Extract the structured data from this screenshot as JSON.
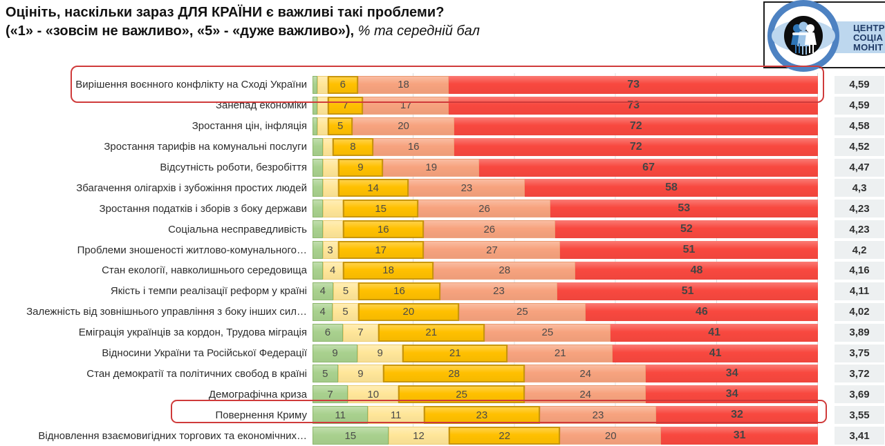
{
  "title": {
    "line1": "Оцініть, наскільки зараз ДЛЯ КРАЇНИ є важливі такі проблеми?",
    "line2_bold": "(«1» - «зовсім не важливо», «5» - «дуже важливо»), ",
    "line2_italic": "% та середній бал"
  },
  "logo": {
    "lines": [
      "ЦЕНТР",
      "СОЦІА",
      "МОНІТ"
    ]
  },
  "chart_data": {
    "type": "bar",
    "stacked": true,
    "orientation": "horizontal",
    "title": "Оцініть, наскільки зараз ДЛЯ КРАЇНИ є важливі такі проблеми?",
    "subtitle": "(«1» - «зовсім не важливо», «5» - «дуже важливо»), % та середній бал",
    "value_unit": "%",
    "scale": {
      "min": 1,
      "max": 5,
      "min_label": "зовсім не важливо",
      "max_label": "дуже важливо"
    },
    "series_names": [
      "1",
      "2",
      "3",
      "4",
      "5"
    ],
    "segment_colors": [
      "#a9d18e",
      "#ffe699",
      "#ffc000",
      "#f7a37e",
      "#f8483f"
    ],
    "grid": true,
    "score_column_title": "середній бал",
    "rows": [
      {
        "label": "Вирішення воєнного конфлікту на Сході України",
        "values": [
          1,
          2,
          6,
          18,
          73
        ],
        "labels": [
          "",
          "",
          "6",
          "18",
          "73"
        ],
        "score": "4,59",
        "highlighted": true
      },
      {
        "label": "Занепад економіки",
        "values": [
          1,
          2,
          7,
          17,
          73
        ],
        "labels": [
          "",
          "",
          "7",
          "17",
          "73"
        ],
        "score": "4,59",
        "highlighted": false
      },
      {
        "label": "Зростання цін, інфляція",
        "values": [
          1,
          2,
          5,
          20,
          72
        ],
        "labels": [
          "",
          "",
          "5",
          "20",
          "72"
        ],
        "score": "4,58",
        "highlighted": false
      },
      {
        "label": "Зростання тарифів на комунальні послуги",
        "values": [
          2,
          2,
          8,
          16,
          72
        ],
        "labels": [
          "",
          "",
          "8",
          "16",
          "72"
        ],
        "score": "4,52",
        "highlighted": false
      },
      {
        "label": "Відсутність роботи, безробіття",
        "values": [
          2,
          3,
          9,
          19,
          67
        ],
        "labels": [
          "",
          "",
          "9",
          "19",
          "67"
        ],
        "score": "4,47",
        "highlighted": false
      },
      {
        "label": "Збагачення олігархів і зубожіння простих людей",
        "values": [
          2,
          3,
          14,
          23,
          58
        ],
        "labels": [
          "",
          "",
          "14",
          "23",
          "58"
        ],
        "score": "4,3",
        "highlighted": false
      },
      {
        "label": "Зростання податків і зборів з боку держави",
        "values": [
          2,
          4,
          15,
          26,
          53
        ],
        "labels": [
          "",
          "",
          "15",
          "26",
          "53"
        ],
        "score": "4,23",
        "highlighted": false
      },
      {
        "label": "Соціальна несправедливість",
        "values": [
          2,
          4,
          16,
          26,
          52
        ],
        "labels": [
          "",
          "",
          "16",
          "26",
          "52"
        ],
        "score": "4,23",
        "highlighted": false
      },
      {
        "label": "Проблеми зношеності житлово-комунального…",
        "values": [
          2,
          3,
          17,
          27,
          51
        ],
        "labels": [
          "",
          "3",
          "17",
          "27",
          "51"
        ],
        "score": "4,2",
        "highlighted": false
      },
      {
        "label": "Стан екології, навколишнього середовища",
        "values": [
          2,
          4,
          18,
          28,
          48
        ],
        "labels": [
          "",
          "4",
          "18",
          "28",
          "48"
        ],
        "score": "4,16",
        "highlighted": false
      },
      {
        "label": "Якість і темпи реалізації реформ у країні",
        "values": [
          4,
          5,
          16,
          23,
          51
        ],
        "labels": [
          "4",
          "5",
          "16",
          "23",
          "51"
        ],
        "score": "4,11",
        "highlighted": false
      },
      {
        "label": "Залежність від зовнішнього управління з боку інших сил…",
        "values": [
          4,
          5,
          20,
          25,
          46
        ],
        "labels": [
          "4",
          "5",
          "20",
          "25",
          "46"
        ],
        "score": "4,02",
        "highlighted": false
      },
      {
        "label": "Еміграція українців за кордон, Трудова міграція",
        "values": [
          6,
          7,
          21,
          25,
          41
        ],
        "labels": [
          "6",
          "7",
          "21",
          "25",
          "41"
        ],
        "score": "3,89",
        "highlighted": false
      },
      {
        "label": "Відносини України та Російської Федерації",
        "values": [
          9,
          9,
          21,
          21,
          41
        ],
        "labels": [
          "9",
          "9",
          "21",
          "21",
          "41"
        ],
        "score": "3,75",
        "highlighted": false
      },
      {
        "label": "Стан демократії та політичних свобод в країні",
        "values": [
          5,
          9,
          28,
          24,
          34
        ],
        "labels": [
          "5",
          "9",
          "28",
          "24",
          "34"
        ],
        "score": "3,72",
        "highlighted": false
      },
      {
        "label": "Демографічна криза",
        "values": [
          7,
          10,
          25,
          24,
          34
        ],
        "labels": [
          "7",
          "10",
          "25",
          "24",
          "34"
        ],
        "score": "3,69",
        "highlighted": false
      },
      {
        "label": "Повернення Криму",
        "values": [
          11,
          11,
          23,
          23,
          32
        ],
        "labels": [
          "11",
          "11",
          "23",
          "23",
          "32"
        ],
        "score": "3,55",
        "highlighted": true
      },
      {
        "label": "Відновлення взаємовигідних торгових та економічних…",
        "values": [
          15,
          12,
          22,
          20,
          31
        ],
        "labels": [
          "15",
          "12",
          "22",
          "20",
          "31"
        ],
        "score": "3,41",
        "highlighted": false
      }
    ]
  }
}
